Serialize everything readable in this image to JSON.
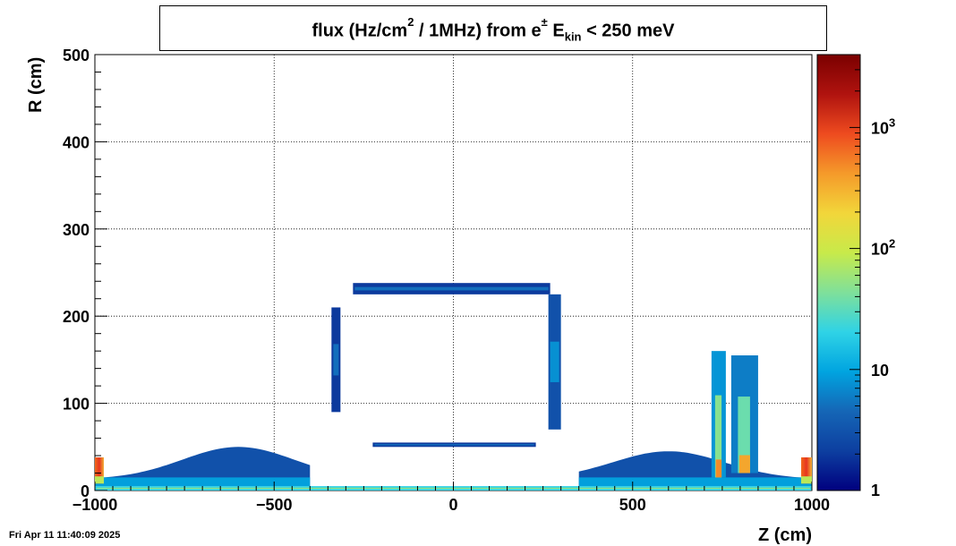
{
  "title": {
    "main": "flux (Hz/cm",
    "sup": "2",
    "mid": " / 1MHz) from  e",
    "pm": "±",
    "ek": " E",
    "sub": "kin",
    "tail": " < 250 meV"
  },
  "timestamp": "Fri Apr 11 11:40:09 2025",
  "chart_data": {
    "type": "heatmap",
    "xlabel": "Z (cm)",
    "ylabel": "R (cm)",
    "xlim": [
      -1000,
      1000
    ],
    "ylim": [
      0,
      500
    ],
    "x_ticks": [
      {
        "value": -1000,
        "label": "−1000"
      },
      {
        "value": -500,
        "label": "−500"
      },
      {
        "value": 0,
        "label": "0"
      },
      {
        "value": 500,
        "label": "500"
      },
      {
        "value": 1000,
        "label": "1000"
      }
    ],
    "y_ticks": [
      {
        "value": 0,
        "label": "0"
      },
      {
        "value": 100,
        "label": "100"
      },
      {
        "value": 200,
        "label": "200"
      },
      {
        "value": 300,
        "label": "300"
      },
      {
        "value": 400,
        "label": "400"
      },
      {
        "value": 500,
        "label": "500"
      }
    ],
    "grid": true,
    "colorbar": {
      "scale": "log",
      "range": [
        1,
        4000
      ],
      "ticks": [
        {
          "value": 1,
          "base": "1",
          "exp": ""
        },
        {
          "value": 10,
          "base": "10",
          "exp": ""
        },
        {
          "value": 100,
          "base": "10",
          "exp": "2"
        },
        {
          "value": 1000,
          "base": "10",
          "exp": "3"
        }
      ],
      "colormap": [
        "#00007f",
        "#0d3fa0",
        "#1566b6",
        "#00a4e0",
        "#2fd3e6",
        "#7fe09a",
        "#c8ea4a",
        "#f2d63a",
        "#f59a2a",
        "#ee4b1f",
        "#b0130f",
        "#7a0000"
      ]
    },
    "regions": [
      {
        "name": "top-barrel-band",
        "z": [
          -280,
          270
        ],
        "r": [
          225,
          238
        ],
        "value": 2
      },
      {
        "name": "left-barrel-wall",
        "z": [
          -340,
          -315
        ],
        "r": [
          90,
          210
        ],
        "value": 2
      },
      {
        "name": "right-barrel-wall",
        "z": [
          265,
          300
        ],
        "r": [
          70,
          225
        ],
        "value": 3
      },
      {
        "name": "inner-bar",
        "z": [
          -225,
          230
        ],
        "r": [
          50,
          55
        ],
        "value": 2
      },
      {
        "name": "left-floor",
        "z": [
          -1000,
          -400
        ],
        "r": [
          5,
          50
        ],
        "value": 3
      },
      {
        "name": "right-floor",
        "z": [
          350,
          1000
        ],
        "r": [
          5,
          45
        ],
        "value": 3
      },
      {
        "name": "right-tower-a",
        "z": [
          720,
          760
        ],
        "r": [
          15,
          160
        ],
        "value": 8
      },
      {
        "name": "right-tower-b",
        "z": [
          775,
          850
        ],
        "r": [
          20,
          155
        ],
        "value": 6
      },
      {
        "name": "corner-left",
        "z": [
          -1000,
          -975
        ],
        "r": [
          8,
          38
        ],
        "value": 600
      },
      {
        "name": "corner-right",
        "z": [
          970,
          1000
        ],
        "r": [
          8,
          38
        ],
        "value": 600
      },
      {
        "name": "beam-line",
        "z": [
          -1000,
          1000
        ],
        "r": [
          0,
          5
        ],
        "value": 20
      }
    ]
  }
}
